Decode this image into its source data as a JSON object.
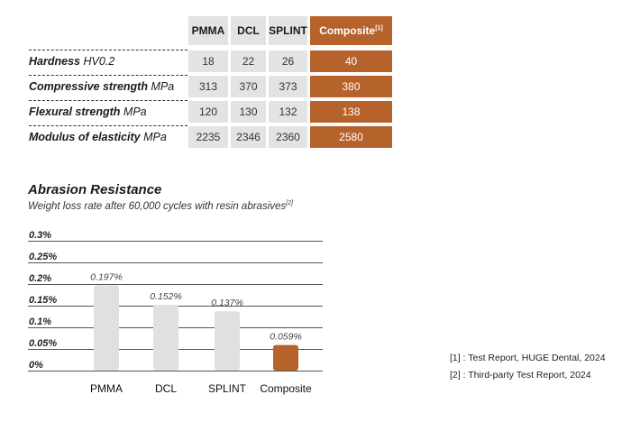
{
  "table": {
    "headers": [
      "PMMA",
      "DCL",
      "SPLINT",
      "Composite"
    ],
    "header_note": "[1]",
    "rows": [
      {
        "label": "Hardness",
        "unit": "HV0.2",
        "values": [
          "18",
          "22",
          "26",
          "40"
        ]
      },
      {
        "label": "Compressive strength",
        "unit": "MPa",
        "values": [
          "313",
          "370",
          "373",
          "380"
        ]
      },
      {
        "label": "Flexural strength",
        "unit": "MPa",
        "values": [
          "120",
          "130",
          "132",
          "138"
        ]
      },
      {
        "label": "Modulus of elasticity",
        "unit": "MPa",
        "values": [
          "2235",
          "2346",
          "2360",
          "2580"
        ]
      }
    ],
    "colors": {
      "material": "#e3e3e3",
      "composite": "#b5622b"
    }
  },
  "chart_data": {
    "type": "bar",
    "title": "Abrasion Resistance",
    "subtitle": "Weight loss rate after 60,000 cycles with resin abrasives",
    "subtitle_note": "[2]",
    "categories": [
      "PMMA",
      "DCL",
      "SPLINT",
      "Composite"
    ],
    "values": [
      0.197,
      0.152,
      0.137,
      0.059
    ],
    "data_labels": [
      "0.197%",
      "0.152%",
      "0.137%",
      "0.059%"
    ],
    "yticks": [
      "0%",
      "0.05%",
      "0.1%",
      "0.15%",
      "0.2%",
      "0.25%",
      "0.3%"
    ],
    "ylim": [
      0,
      0.3
    ],
    "grid": true,
    "colors": [
      "#e0e0e0",
      "#e0e0e0",
      "#e0e0e0",
      "#b5622b"
    ]
  },
  "references": [
    "[1] : Test Report, HUGE Dental, 2024",
    "[2] : Third-party Test Report, 2024"
  ]
}
